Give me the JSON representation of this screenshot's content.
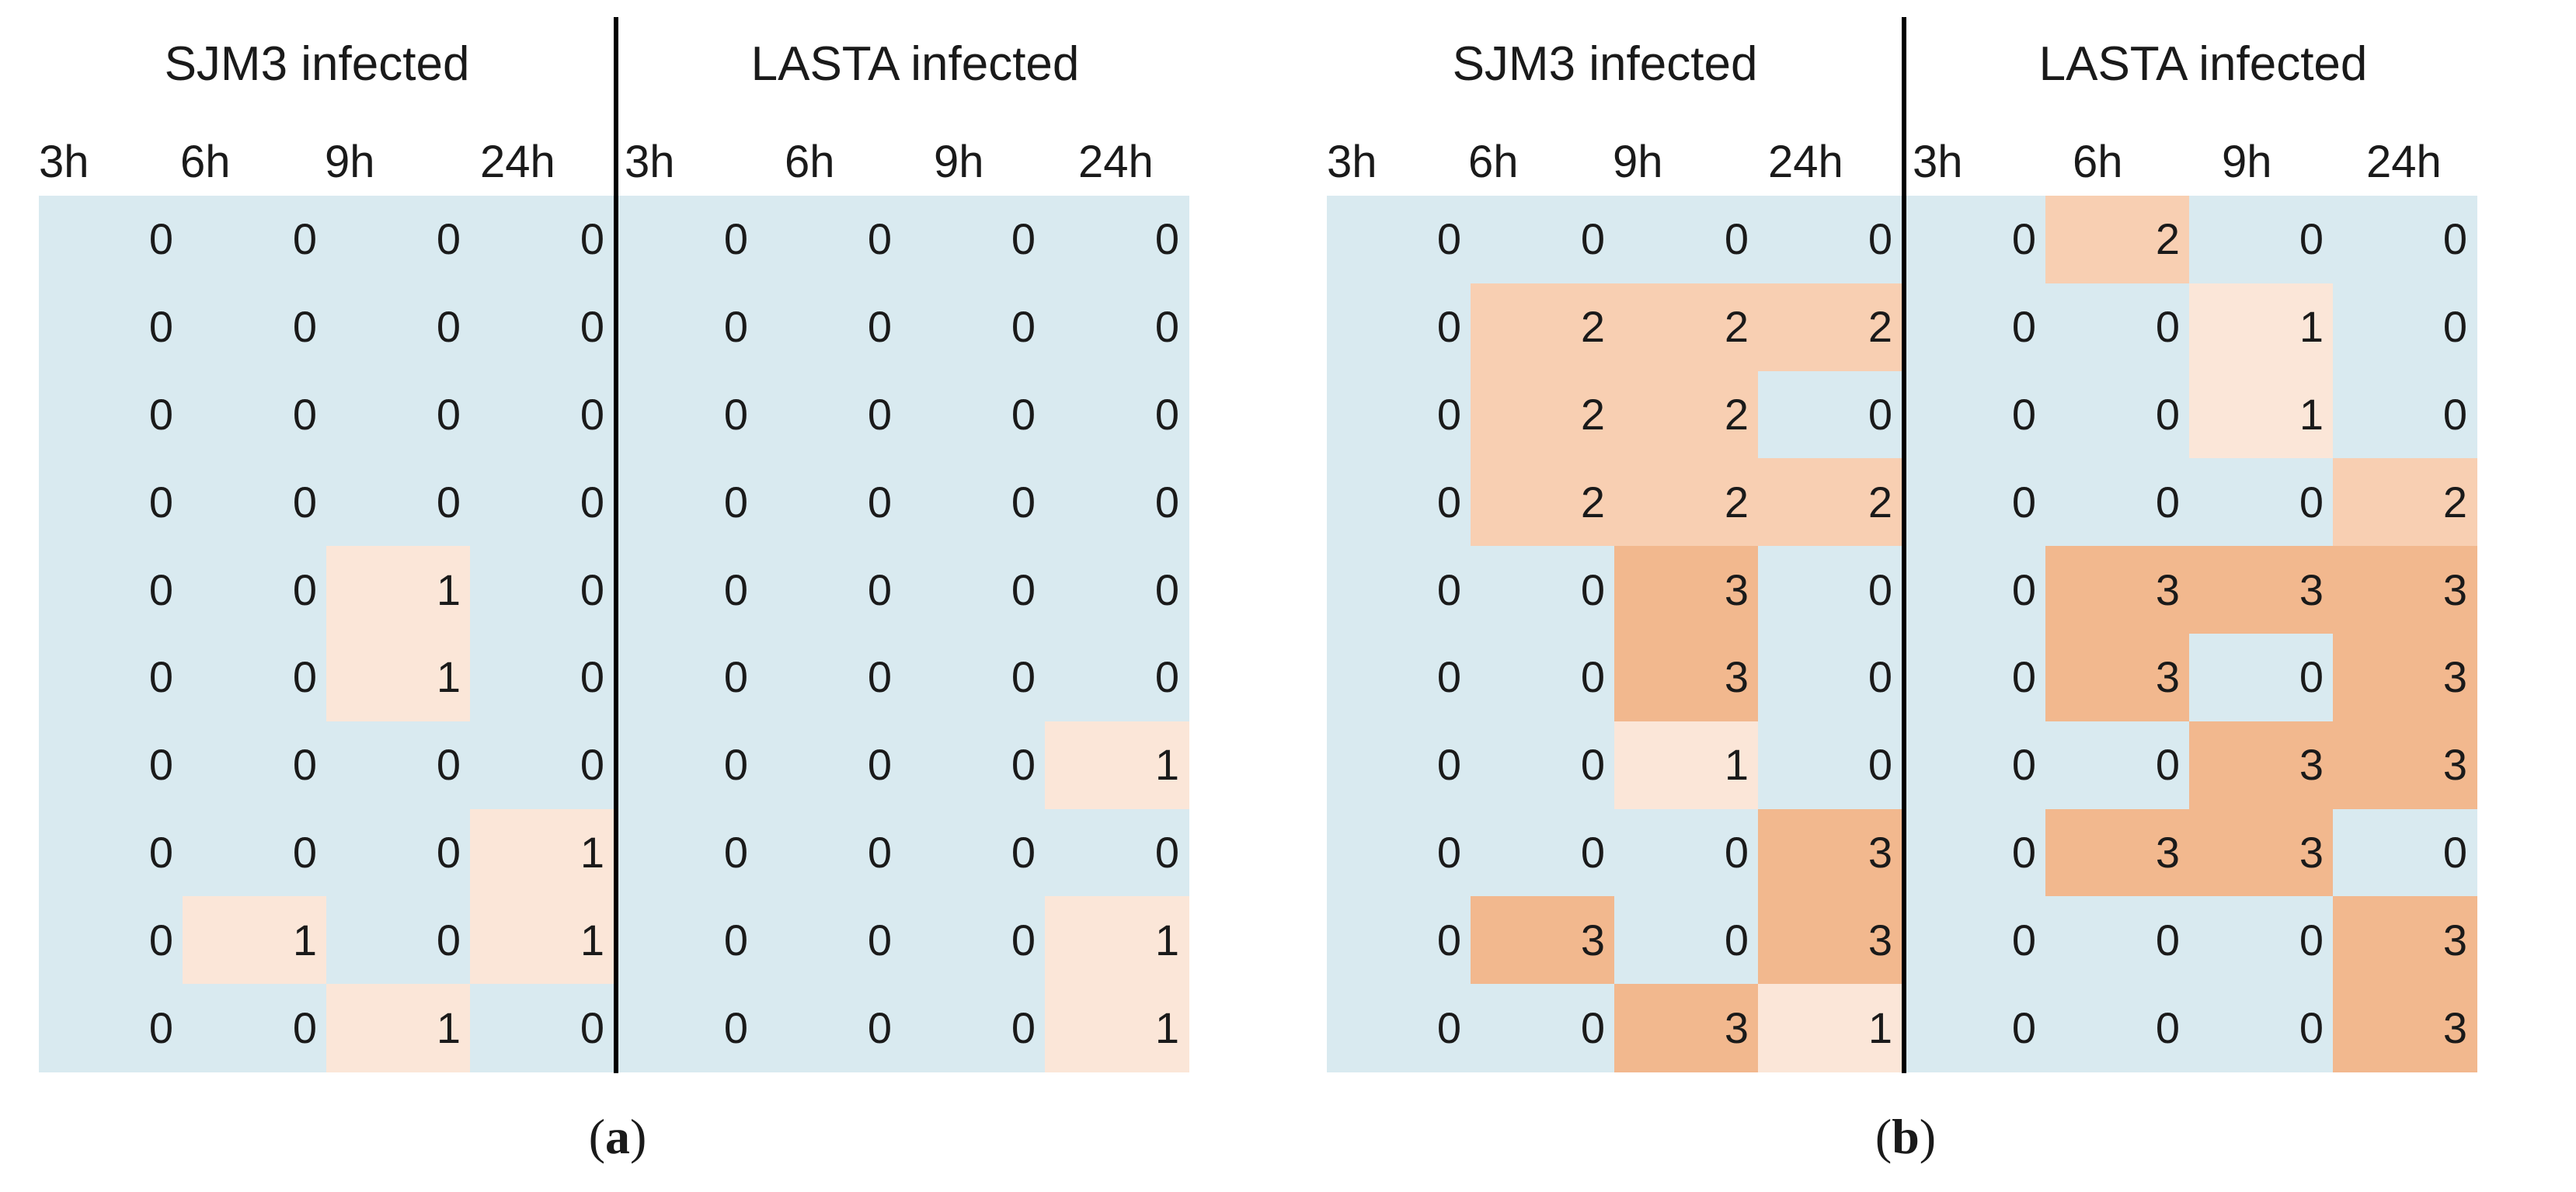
{
  "colors": {
    "level_0": "#d9eaf0",
    "level_1": "#fbe6d8",
    "level_2": "#f8cfb2",
    "level_3": "#f2b88e",
    "divider": "#000000",
    "text": "#1a1a1a"
  },
  "chart_data": [
    {
      "type": "heatmap",
      "panel_label": "a",
      "groups": [
        "SJM3 infected",
        "LASTA infected"
      ],
      "time_labels": [
        "3h",
        "6h",
        "9h",
        "24h"
      ],
      "columns": [
        "3h",
        "6h",
        "9h",
        "24h",
        "3h",
        "6h",
        "9h",
        "24h"
      ],
      "rows": [
        [
          0,
          0,
          0,
          0,
          0,
          0,
          0,
          0
        ],
        [
          0,
          0,
          0,
          0,
          0,
          0,
          0,
          0
        ],
        [
          0,
          0,
          0,
          0,
          0,
          0,
          0,
          0
        ],
        [
          0,
          0,
          0,
          0,
          0,
          0,
          0,
          0
        ],
        [
          0,
          0,
          1,
          0,
          0,
          0,
          0,
          0
        ],
        [
          0,
          0,
          1,
          0,
          0,
          0,
          0,
          0
        ],
        [
          0,
          0,
          0,
          0,
          0,
          0,
          0,
          1
        ],
        [
          0,
          0,
          0,
          1,
          0,
          0,
          0,
          0
        ],
        [
          0,
          1,
          0,
          1,
          0,
          0,
          0,
          1
        ],
        [
          0,
          0,
          1,
          0,
          0,
          0,
          0,
          1
        ]
      ]
    },
    {
      "type": "heatmap",
      "panel_label": "b",
      "groups": [
        "SJM3 infected",
        "LASTA infected"
      ],
      "time_labels": [
        "3h",
        "6h",
        "9h",
        "24h"
      ],
      "columns": [
        "3h",
        "6h",
        "9h",
        "24h",
        "3h",
        "6h",
        "9h",
        "24h"
      ],
      "rows": [
        [
          0,
          0,
          0,
          0,
          0,
          2,
          0,
          0
        ],
        [
          0,
          2,
          2,
          2,
          0,
          0,
          1,
          0
        ],
        [
          0,
          2,
          2,
          0,
          0,
          0,
          1,
          0
        ],
        [
          0,
          2,
          2,
          2,
          0,
          0,
          0,
          2
        ],
        [
          0,
          0,
          3,
          0,
          0,
          3,
          3,
          3
        ],
        [
          0,
          0,
          3,
          0,
          0,
          3,
          0,
          3
        ],
        [
          0,
          0,
          1,
          0,
          0,
          0,
          3,
          3
        ],
        [
          0,
          0,
          0,
          3,
          0,
          3,
          3,
          0
        ],
        [
          0,
          3,
          0,
          3,
          0,
          0,
          0,
          3
        ],
        [
          0,
          0,
          3,
          1,
          0,
          0,
          0,
          3
        ]
      ]
    }
  ]
}
